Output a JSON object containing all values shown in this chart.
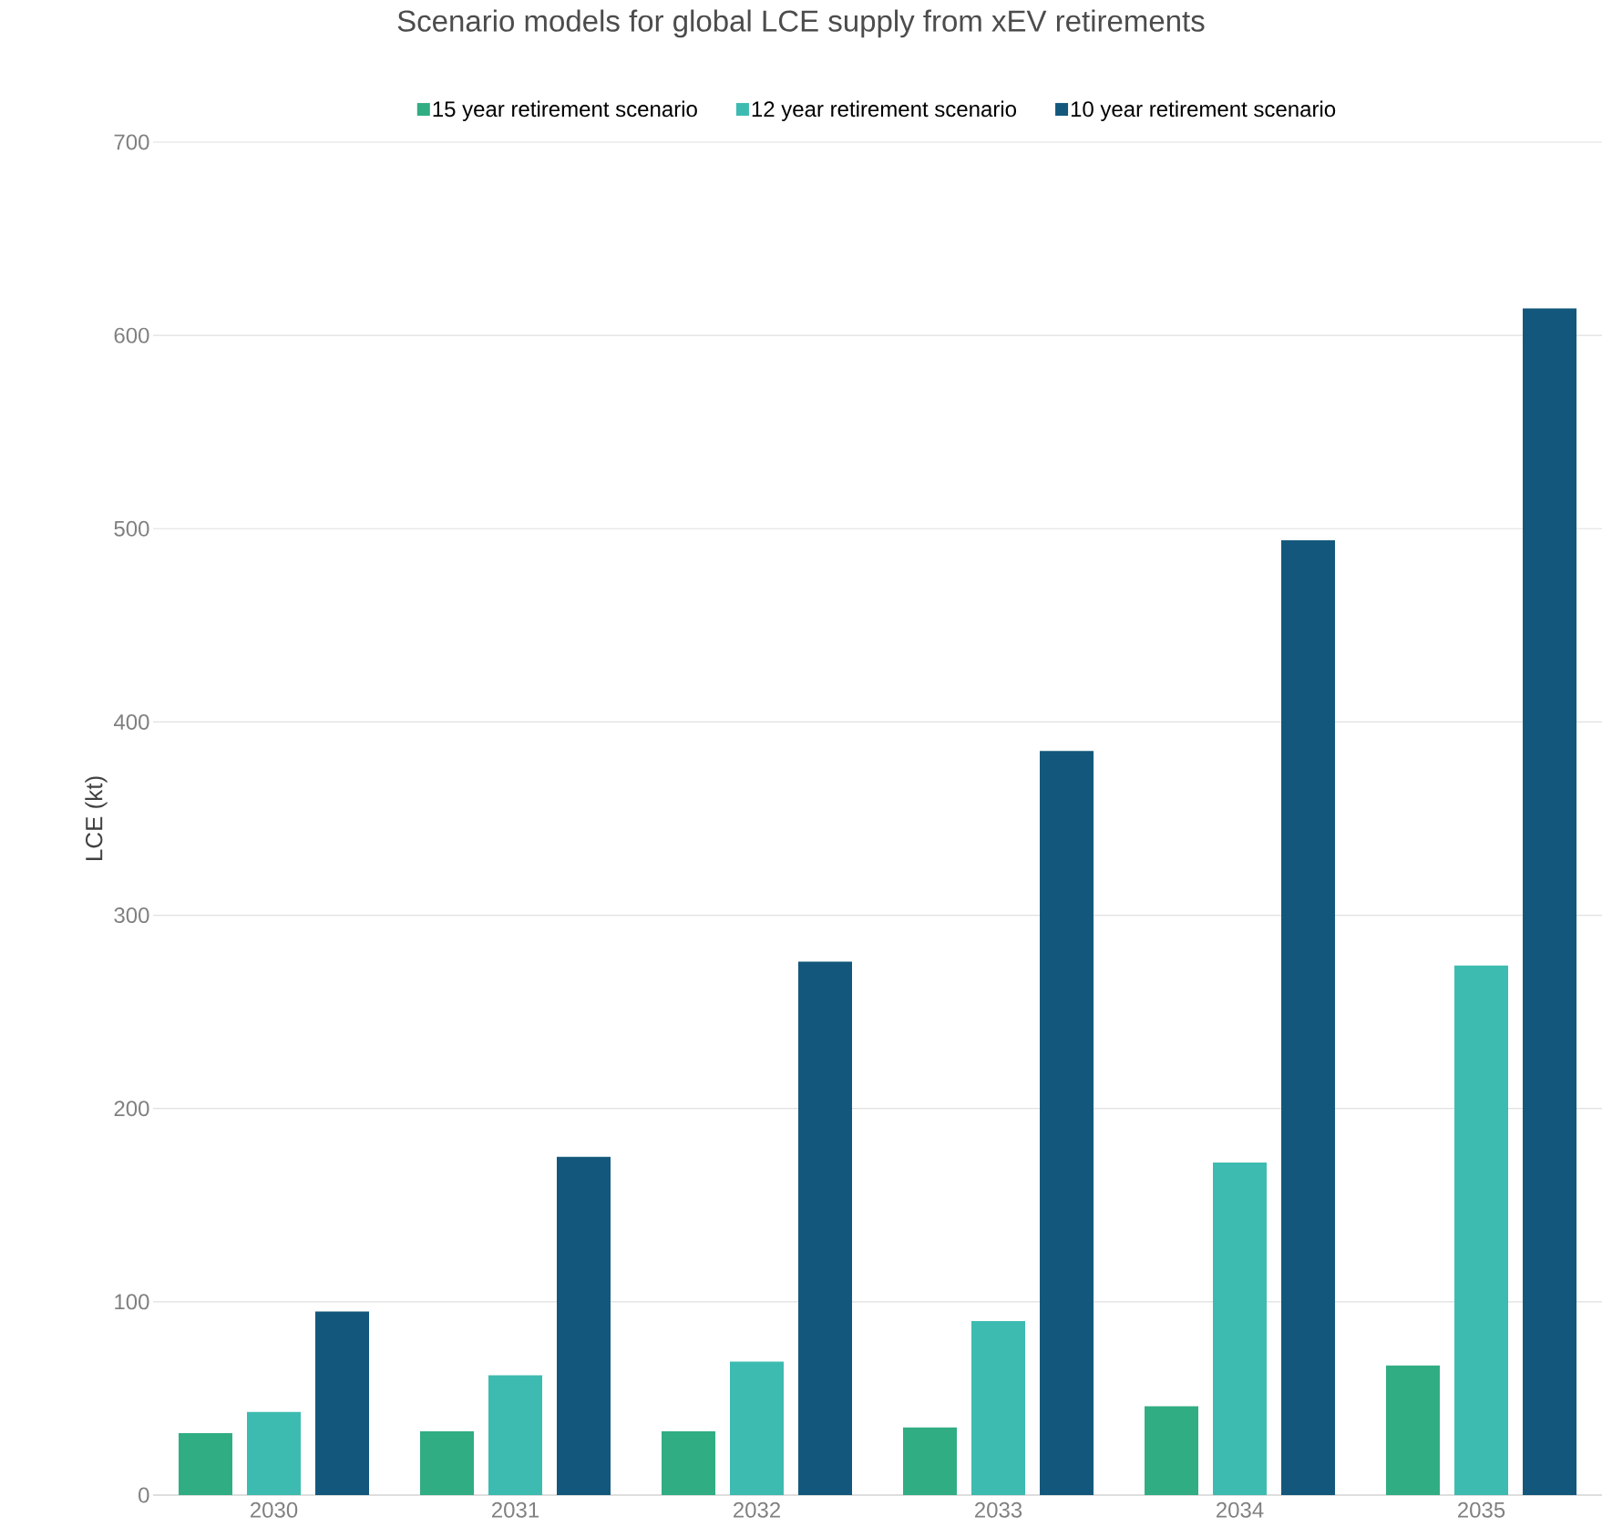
{
  "chart_data": {
    "type": "bar",
    "title": "Scenario models for global LCE supply from xEV retirements",
    "ylabel": "LCE (kt)",
    "categories": [
      "2030",
      "2031",
      "2032",
      "2033",
      "2034",
      "2035"
    ],
    "series": [
      {
        "name": "15 year retirement scenario",
        "color": "#31ad83",
        "values": [
          32,
          33,
          33,
          35,
          46,
          67
        ]
      },
      {
        "name": "12 year retirement scenario",
        "color": "#3dbbb0",
        "values": [
          43,
          62,
          69,
          90,
          172,
          274
        ]
      },
      {
        "name": "10 year retirement scenario",
        "color": "#13587c",
        "values": [
          95,
          175,
          276,
          385,
          494,
          614
        ]
      }
    ],
    "ylim": [
      0,
      700
    ],
    "yticks": [
      0,
      100,
      200,
      300,
      400,
      500,
      600,
      700
    ],
    "grid": "y",
    "legend": "top"
  }
}
